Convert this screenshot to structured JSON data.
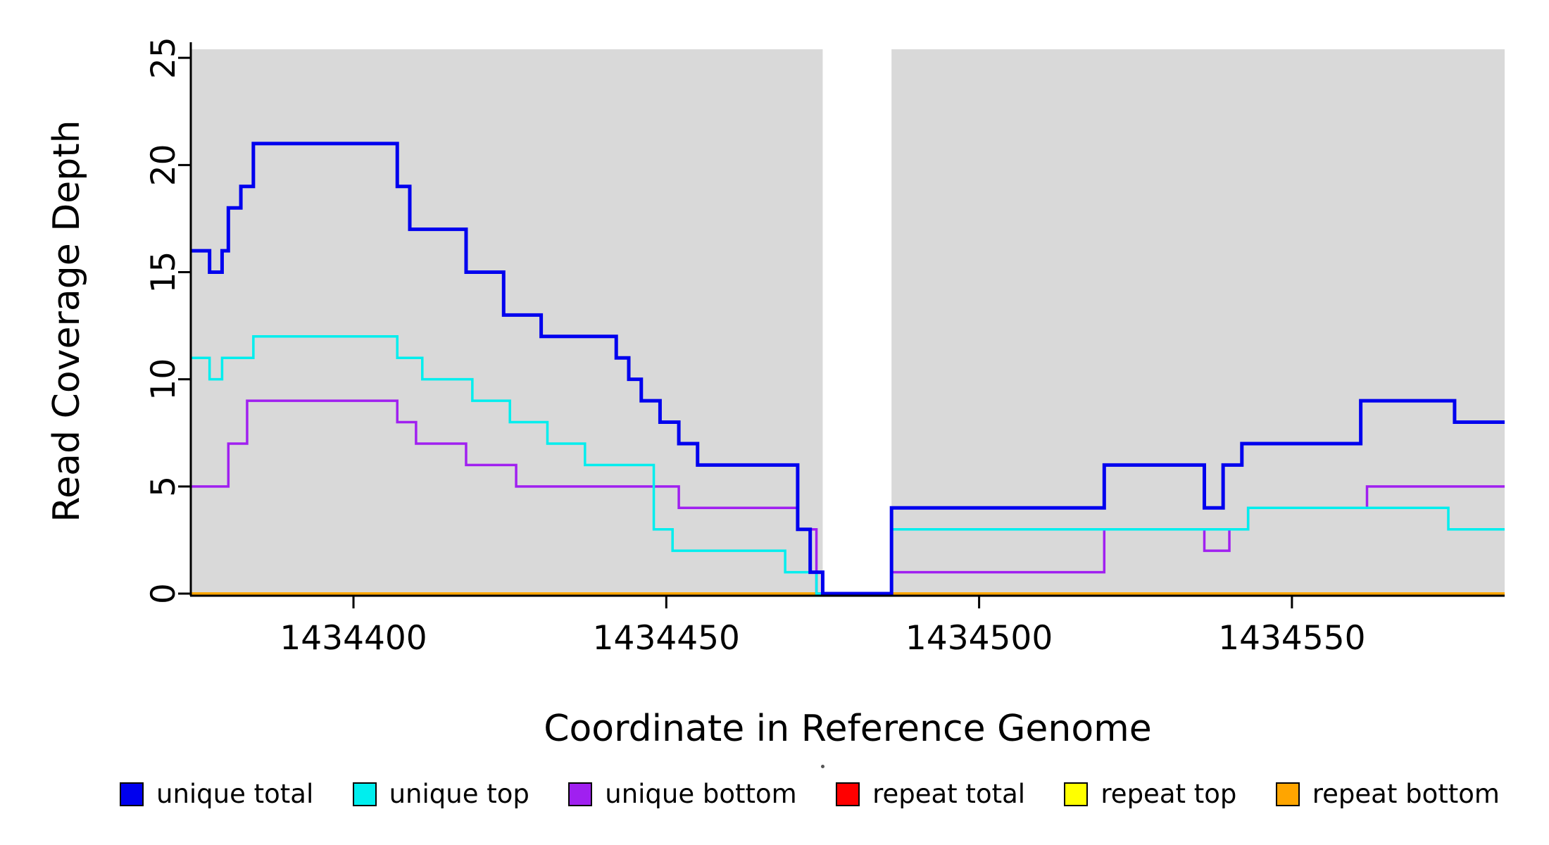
{
  "figure": {
    "title": "",
    "xlabel": "Coordinate in Reference Genome",
    "ylabel": "Read Coverage Depth"
  },
  "legend": {
    "position": "bottom",
    "items": [
      {
        "label": "unique total",
        "color": "#0000EE"
      },
      {
        "label": "unique top",
        "color": "#00EEEE"
      },
      {
        "label": "unique bottom",
        "color": "#A020F0"
      },
      {
        "label": "repeat total",
        "color": "#FF0000"
      },
      {
        "label": "repeat top",
        "color": "#FFFF00"
      },
      {
        "label": "repeat bottom",
        "color": "#FFA500"
      }
    ]
  },
  "chart_data": {
    "type": "line",
    "step": true,
    "title": "",
    "xlabel": "Coordinate in Reference Genome",
    "ylabel": "Read Coverage Depth",
    "xlim": [
      1434374,
      1434584
    ],
    "ylim": [
      0,
      25.4
    ],
    "x_ticks": [
      1434400,
      1434450,
      1434500,
      1434550
    ],
    "y_ticks": [
      0,
      5,
      10,
      15,
      20,
      25
    ],
    "grid": false,
    "plot_background": "#FFFFFF",
    "shaded_regions": [
      {
        "x0": 1434374,
        "x1": 1434475,
        "color": "#D9D9D9"
      },
      {
        "x0": 1434486,
        "x1": 1434584,
        "color": "#D9D9D9"
      }
    ],
    "series": [
      {
        "name": "unique total",
        "color": "#0000EE",
        "width": 5,
        "z": 6,
        "steps": [
          [
            1434374,
            16
          ],
          [
            1434377,
            15
          ],
          [
            1434379,
            16
          ],
          [
            1434380,
            18
          ],
          [
            1434382,
            19
          ],
          [
            1434384,
            21
          ],
          [
            1434407,
            19
          ],
          [
            1434409,
            17
          ],
          [
            1434418,
            15
          ],
          [
            1434424,
            13
          ],
          [
            1434430,
            12
          ],
          [
            1434442,
            11
          ],
          [
            1434444,
            10
          ],
          [
            1434446,
            9
          ],
          [
            1434449,
            8
          ],
          [
            1434452,
            7
          ],
          [
            1434455,
            6
          ],
          [
            1434471,
            3
          ],
          [
            1434473,
            1
          ],
          [
            1434475,
            0
          ],
          [
            1434486,
            4
          ],
          [
            1434520,
            6
          ],
          [
            1434536,
            4
          ],
          [
            1434539,
            6
          ],
          [
            1434542,
            7
          ],
          [
            1434561,
            9
          ],
          [
            1434576,
            8
          ]
        ]
      },
      {
        "name": "unique top",
        "color": "#00EEEE",
        "width": 3.5,
        "z": 5,
        "steps": [
          [
            1434374,
            11
          ],
          [
            1434377,
            10
          ],
          [
            1434379,
            11
          ],
          [
            1434384,
            12
          ],
          [
            1434407,
            11
          ],
          [
            1434411,
            10
          ],
          [
            1434419,
            9
          ],
          [
            1434425,
            8
          ],
          [
            1434431,
            7
          ],
          [
            1434437,
            6
          ],
          [
            1434448,
            3
          ],
          [
            1434451,
            2
          ],
          [
            1434469,
            1
          ],
          [
            1434474,
            0
          ],
          [
            1434486,
            3
          ],
          [
            1434543,
            4
          ],
          [
            1434575,
            3
          ]
        ]
      },
      {
        "name": "unique bottom",
        "color": "#A020F0",
        "width": 3.5,
        "z": 4,
        "steps": [
          [
            1434374,
            5
          ],
          [
            1434380,
            7
          ],
          [
            1434383,
            9
          ],
          [
            1434407,
            8
          ],
          [
            1434410,
            7
          ],
          [
            1434418,
            6
          ],
          [
            1434426,
            5
          ],
          [
            1434452,
            4
          ],
          [
            1434471,
            3
          ],
          [
            1434474,
            0
          ],
          [
            1434486,
            1
          ],
          [
            1434520,
            3
          ],
          [
            1434536,
            2
          ],
          [
            1434540,
            3
          ],
          [
            1434543,
            4
          ],
          [
            1434562,
            5
          ]
        ]
      },
      {
        "name": "repeat total",
        "color": "#FF0000",
        "width": 3.5,
        "z": 1,
        "steps": [
          [
            1434374,
            0
          ]
        ]
      },
      {
        "name": "repeat top",
        "color": "#FFFF00",
        "width": 3.5,
        "z": 2,
        "steps": [
          [
            1434374,
            0
          ]
        ]
      },
      {
        "name": "repeat bottom",
        "color": "#FFA500",
        "width": 3.5,
        "z": 3,
        "steps": [
          [
            1434374,
            0
          ]
        ]
      }
    ]
  }
}
